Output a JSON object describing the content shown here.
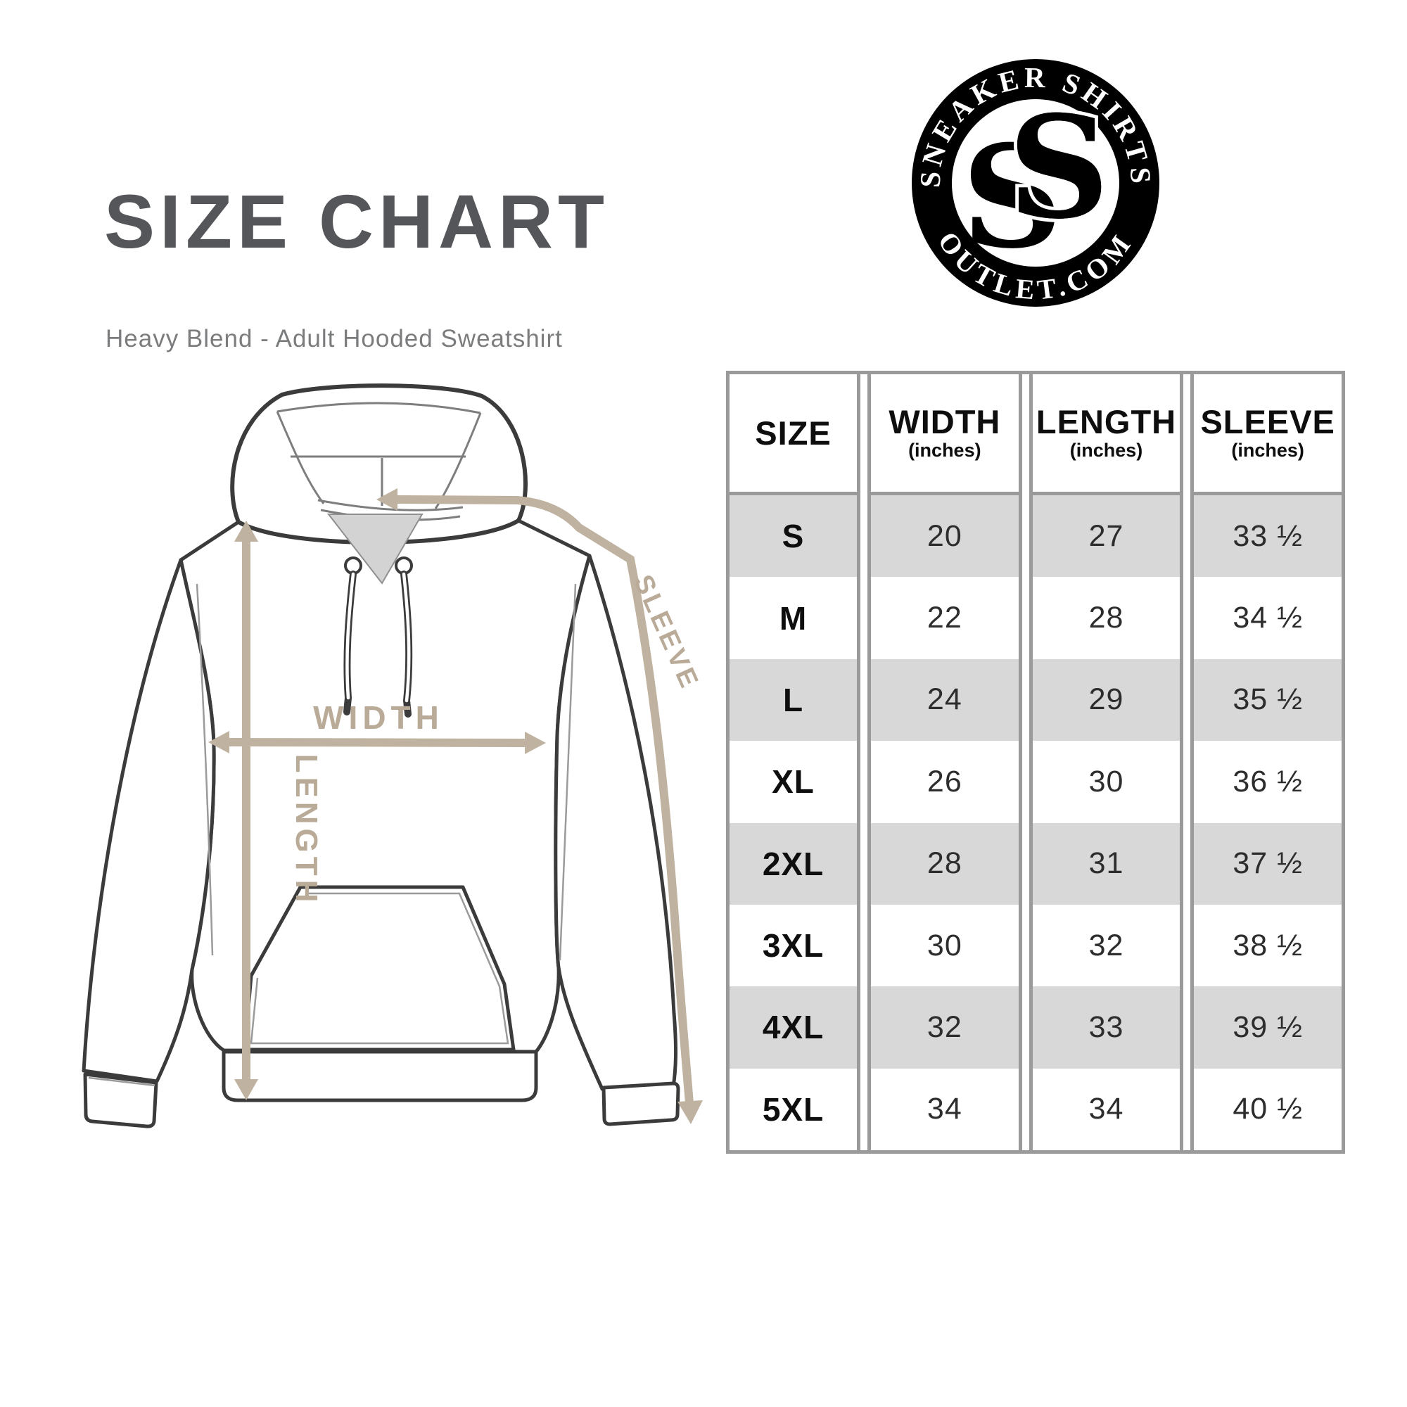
{
  "header": {
    "title": "SIZE CHART",
    "subtitle": "Heavy Blend - Adult Hooded Sweatshirt"
  },
  "logo": {
    "arc_top": "SNEAKER SHIRTS",
    "arc_bottom": "OUTLET.COM",
    "monogram": "SS",
    "ring_color": "#000000",
    "text_color": "#ffffff"
  },
  "diagram": {
    "garment": "adult hooded sweatshirt outline",
    "labels": {
      "width": "WIDTH",
      "length": "LENGTH",
      "sleeve": "SLEEVE"
    },
    "arrow_color": "#c0b2a0",
    "label_color": "#b9ab98",
    "outline_color": "#3b3b3b"
  },
  "size_table": {
    "border_color": "#9a9a9a",
    "stripe_color": "#d8d8d8",
    "columns": [
      {
        "key": "size",
        "label": "SIZE",
        "sub": ""
      },
      {
        "key": "width",
        "label": "WIDTH",
        "sub": "(inches)"
      },
      {
        "key": "length",
        "label": "LENGTH",
        "sub": "(inches)"
      },
      {
        "key": "sleeve",
        "label": "SLEEVE",
        "sub": "(inches)"
      }
    ],
    "rows": [
      {
        "size": "S",
        "width": "20",
        "length": "27",
        "sleeve": "33 ½"
      },
      {
        "size": "M",
        "width": "22",
        "length": "28",
        "sleeve": "34 ½"
      },
      {
        "size": "L",
        "width": "24",
        "length": "29",
        "sleeve": "35 ½"
      },
      {
        "size": "XL",
        "width": "26",
        "length": "30",
        "sleeve": "36 ½"
      },
      {
        "size": "2XL",
        "width": "28",
        "length": "31",
        "sleeve": "37 ½"
      },
      {
        "size": "3XL",
        "width": "30",
        "length": "32",
        "sleeve": "38 ½"
      },
      {
        "size": "4XL",
        "width": "32",
        "length": "33",
        "sleeve": "39 ½"
      },
      {
        "size": "5XL",
        "width": "34",
        "length": "34",
        "sleeve": "40 ½"
      }
    ]
  },
  "chart_data": {
    "type": "table",
    "title": "SIZE CHART",
    "subtitle": "Heavy Blend - Adult Hooded Sweatshirt",
    "columns": [
      "SIZE",
      "WIDTH (inches)",
      "LENGTH (inches)",
      "SLEEVE (inches)"
    ],
    "rows": [
      [
        "S",
        20,
        27,
        33.5
      ],
      [
        "M",
        22,
        28,
        34.5
      ],
      [
        "L",
        24,
        29,
        35.5
      ],
      [
        "XL",
        26,
        30,
        36.5
      ],
      [
        "2XL",
        28,
        31,
        37.5
      ],
      [
        "3XL",
        30,
        32,
        38.5
      ],
      [
        "4XL",
        32,
        33,
        39.5
      ],
      [
        "5XL",
        34,
        34,
        40.5
      ]
    ]
  }
}
